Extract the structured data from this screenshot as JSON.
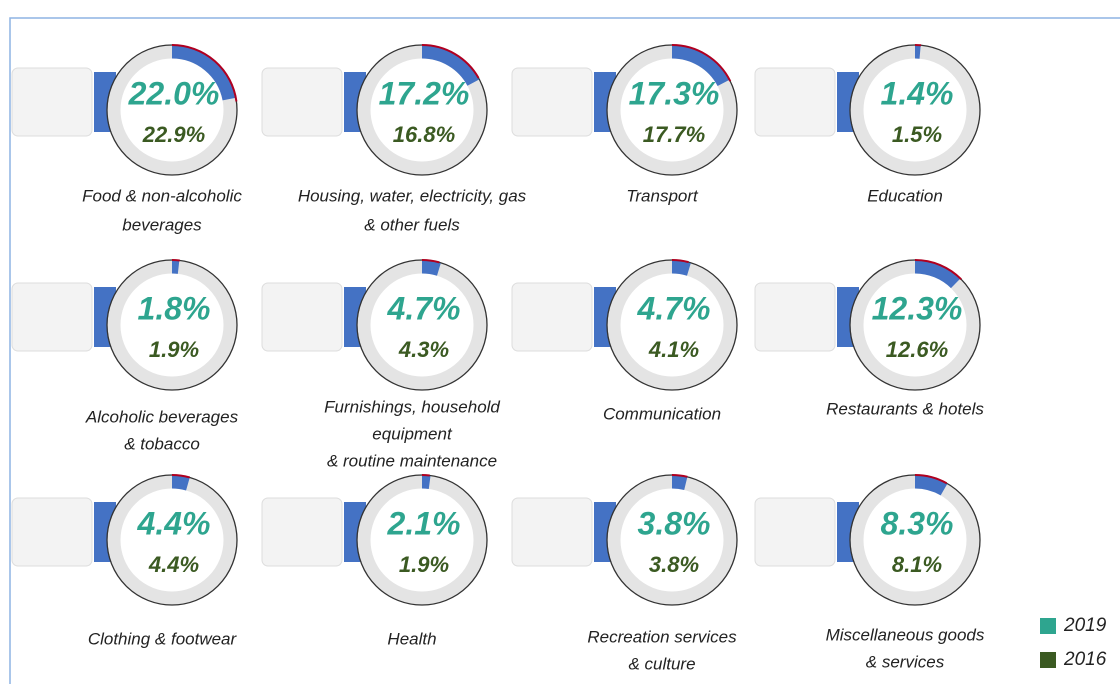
{
  "legend": {
    "items": [
      {
        "name": "2019",
        "color": "#2ea58f"
      },
      {
        "name": "2016",
        "color": "#3b5a22"
      }
    ]
  },
  "arc_color": "#4472c4",
  "ring_color": "#e4e4e4",
  "chart_data": [
    {
      "type": "donut",
      "title": [
        "Food & non-alcoholic",
        "beverages"
      ],
      "values": [
        22.0,
        22.9
      ],
      "value_labels": [
        "22.0%",
        "22.9%"
      ]
    },
    {
      "type": "donut",
      "title": [
        "Housing, water, electricity, gas",
        "& other fuels"
      ],
      "values": [
        17.2,
        16.8
      ],
      "value_labels": [
        "17.2%",
        "16.8%"
      ]
    },
    {
      "type": "donut",
      "title": [
        "Transport"
      ],
      "values": [
        17.3,
        17.7
      ],
      "value_labels": [
        "17.3%",
        "17.7%"
      ]
    },
    {
      "type": "donut",
      "title": [
        "Education"
      ],
      "values": [
        1.4,
        1.5
      ],
      "value_labels": [
        "1.4%",
        "1.5%"
      ]
    },
    {
      "type": "donut",
      "title": [
        "Alcoholic beverages",
        "& tobacco"
      ],
      "values": [
        1.8,
        1.9
      ],
      "value_labels": [
        "1.8%",
        "1.9%"
      ]
    },
    {
      "type": "donut",
      "title": [
        "Furnishings, household",
        "equipment",
        "& routine maintenance"
      ],
      "values": [
        4.7,
        4.3
      ],
      "value_labels": [
        "4.7%",
        "4.3%"
      ]
    },
    {
      "type": "donut",
      "title": [
        "Communication"
      ],
      "values": [
        4.7,
        4.1
      ],
      "value_labels": [
        "4.7%",
        "4.1%"
      ]
    },
    {
      "type": "donut",
      "title": [
        "Restaurants & hotels"
      ],
      "values": [
        12.3,
        12.6
      ],
      "value_labels": [
        "12.3%",
        "12.6%"
      ]
    },
    {
      "type": "donut",
      "title": [
        "Clothing & footwear"
      ],
      "values": [
        4.4,
        4.4
      ],
      "value_labels": [
        "4.4%",
        "4.4%"
      ]
    },
    {
      "type": "donut",
      "title": [
        "Health"
      ],
      "values": [
        2.1,
        1.9
      ],
      "value_labels": [
        "2.1%",
        "1.9%"
      ]
    },
    {
      "type": "donut",
      "title": [
        "Recreation services",
        "& culture"
      ],
      "values": [
        3.8,
        3.8
      ],
      "value_labels": [
        "3.8%",
        "3.8%"
      ]
    },
    {
      "type": "donut",
      "title": [
        "Miscellaneous goods",
        "& services"
      ],
      "values": [
        8.3,
        8.1
      ],
      "value_labels": [
        "8.3%",
        "8.1%"
      ]
    }
  ]
}
